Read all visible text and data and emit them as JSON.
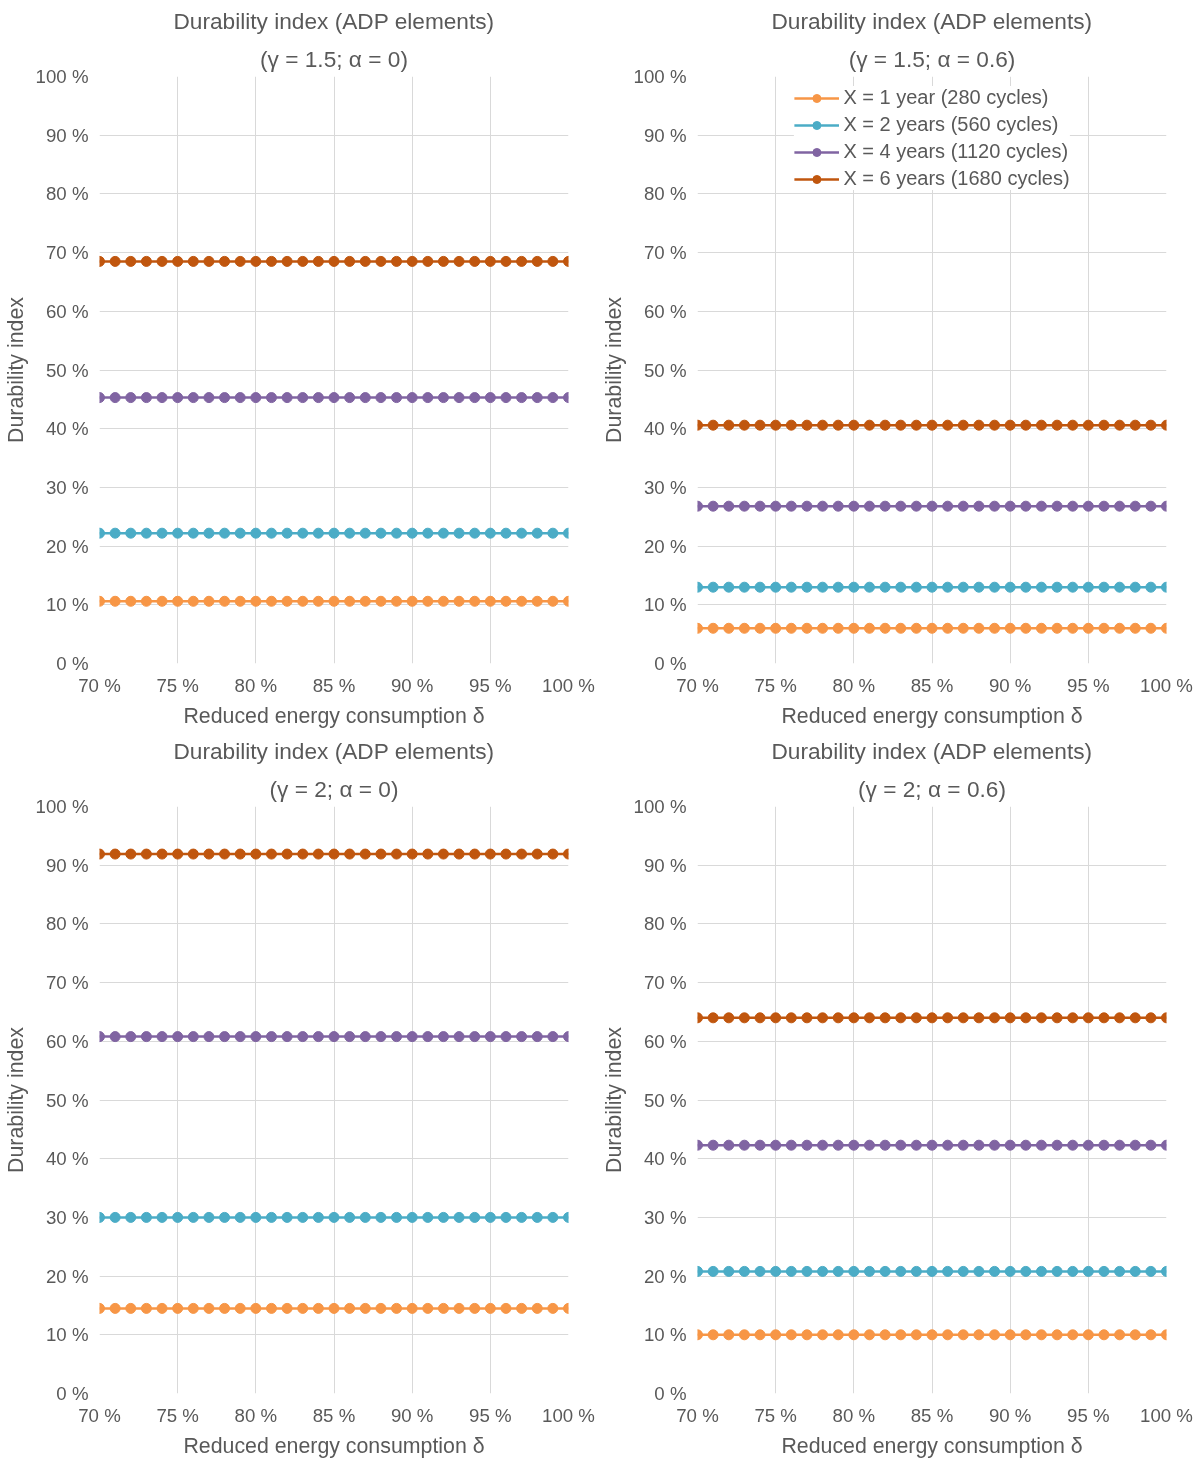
{
  "chart_data": [
    {
      "type": "line",
      "title": "Durability index (ADP elements)",
      "subtitle": "(γ = 1.5; α = 0)",
      "xlabel": "Reduced energy consumption δ",
      "ylabel": "Durability index",
      "x": [
        70,
        71,
        72,
        73,
        74,
        75,
        76,
        77,
        78,
        79,
        80,
        81,
        82,
        83,
        84,
        85,
        86,
        87,
        88,
        89,
        90,
        91,
        92,
        93,
        94,
        95,
        96,
        97,
        98,
        99,
        100
      ],
      "xlim": [
        70,
        100
      ],
      "ylim": [
        0,
        100
      ],
      "xticks": [
        {
          "value": 70,
          "label": "70 %"
        },
        {
          "value": 75,
          "label": "75 %"
        },
        {
          "value": 80,
          "label": "80 %"
        },
        {
          "value": 85,
          "label": "85 %"
        },
        {
          "value": 90,
          "label": "90 %"
        },
        {
          "value": 95,
          "label": "95 %"
        },
        {
          "value": 100,
          "label": "100 %"
        }
      ],
      "yticks": [
        {
          "value": 0,
          "label": "0 %"
        },
        {
          "value": 10,
          "label": "10 %"
        },
        {
          "value": 20,
          "label": "20 %"
        },
        {
          "value": 30,
          "label": "30 %"
        },
        {
          "value": 40,
          "label": "40 %"
        },
        {
          "value": 50,
          "label": "50 %"
        },
        {
          "value": 60,
          "label": "60 %"
        },
        {
          "value": 70,
          "label": "70 %"
        },
        {
          "value": 80,
          "label": "80 %"
        },
        {
          "value": 90,
          "label": "90 %"
        },
        {
          "value": 100,
          "label": "100 %"
        }
      ],
      "grid": true,
      "legend": false,
      "marker": "circle",
      "series": [
        {
          "color": "#f79646",
          "values": [
            10.6,
            10.6,
            10.6,
            10.6,
            10.6,
            10.6,
            10.6,
            10.6,
            10.6,
            10.6,
            10.6,
            10.6,
            10.6,
            10.6,
            10.6,
            10.6,
            10.6,
            10.6,
            10.6,
            10.6,
            10.6,
            10.6,
            10.6,
            10.6,
            10.6,
            10.6,
            10.6,
            10.6,
            10.6,
            10.6,
            10.6
          ]
        },
        {
          "color": "#4bacc6",
          "values": [
            22.2,
            22.2,
            22.2,
            22.2,
            22.2,
            22.2,
            22.2,
            22.2,
            22.2,
            22.2,
            22.2,
            22.2,
            22.2,
            22.2,
            22.2,
            22.2,
            22.2,
            22.2,
            22.2,
            22.2,
            22.2,
            22.2,
            22.2,
            22.2,
            22.2,
            22.2,
            22.2,
            22.2,
            22.2,
            22.2,
            22.2
          ]
        },
        {
          "color": "#8064a2",
          "values": [
            45.3,
            45.3,
            45.3,
            45.3,
            45.3,
            45.3,
            45.3,
            45.3,
            45.3,
            45.3,
            45.3,
            45.3,
            45.3,
            45.3,
            45.3,
            45.3,
            45.3,
            45.3,
            45.3,
            45.3,
            45.3,
            45.3,
            45.3,
            45.3,
            45.3,
            45.3,
            45.3,
            45.3,
            45.3,
            45.3,
            45.3
          ]
        },
        {
          "color": "#c0560e",
          "values": [
            68.5,
            68.5,
            68.5,
            68.5,
            68.5,
            68.5,
            68.5,
            68.5,
            68.5,
            68.5,
            68.5,
            68.5,
            68.5,
            68.5,
            68.5,
            68.5,
            68.5,
            68.5,
            68.5,
            68.5,
            68.5,
            68.5,
            68.5,
            68.5,
            68.5,
            68.5,
            68.5,
            68.5,
            68.5,
            68.5,
            68.5
          ]
        }
      ]
    },
    {
      "type": "line",
      "title": "Durability index (ADP elements)",
      "subtitle": "(γ = 1.5; α = 0.6)",
      "xlabel": "Reduced energy consumption δ",
      "ylabel": "Durability index",
      "x": [
        70,
        71,
        72,
        73,
        74,
        75,
        76,
        77,
        78,
        79,
        80,
        81,
        82,
        83,
        84,
        85,
        86,
        87,
        88,
        89,
        90,
        91,
        92,
        93,
        94,
        95,
        96,
        97,
        98,
        99,
        100
      ],
      "xlim": [
        70,
        100
      ],
      "ylim": [
        0,
        100
      ],
      "xticks": [
        {
          "value": 70,
          "label": "70 %"
        },
        {
          "value": 75,
          "label": "75 %"
        },
        {
          "value": 80,
          "label": "80 %"
        },
        {
          "value": 85,
          "label": "85 %"
        },
        {
          "value": 90,
          "label": "90 %"
        },
        {
          "value": 95,
          "label": "95 %"
        },
        {
          "value": 100,
          "label": "100 %"
        }
      ],
      "yticks": [
        {
          "value": 0,
          "label": "0 %"
        },
        {
          "value": 10,
          "label": "10 %"
        },
        {
          "value": 20,
          "label": "20 %"
        },
        {
          "value": 30,
          "label": "30 %"
        },
        {
          "value": 40,
          "label": "40 %"
        },
        {
          "value": 50,
          "label": "50 %"
        },
        {
          "value": 60,
          "label": "60 %"
        },
        {
          "value": 70,
          "label": "70 %"
        },
        {
          "value": 80,
          "label": "80 %"
        },
        {
          "value": 90,
          "label": "90 %"
        },
        {
          "value": 100,
          "label": "100 %"
        }
      ],
      "grid": true,
      "legend": "top",
      "marker": "circle",
      "series": [
        {
          "name": "X = 1 year (280 cycles)",
          "color": "#f79646",
          "values": [
            6.0,
            6.0,
            6.0,
            6.0,
            6.0,
            6.0,
            6.0,
            6.0,
            6.0,
            6.0,
            6.0,
            6.0,
            6.0,
            6.0,
            6.0,
            6.0,
            6.0,
            6.0,
            6.0,
            6.0,
            6.0,
            6.0,
            6.0,
            6.0,
            6.0,
            6.0,
            6.0,
            6.0,
            6.0,
            6.0,
            6.0
          ]
        },
        {
          "name": "X = 2 years (560 cycles)",
          "color": "#4bacc6",
          "values": [
            13.0,
            13.0,
            13.0,
            13.0,
            13.0,
            13.0,
            13.0,
            13.0,
            13.0,
            13.0,
            13.0,
            13.0,
            13.0,
            13.0,
            13.0,
            13.0,
            13.0,
            13.0,
            13.0,
            13.0,
            13.0,
            13.0,
            13.0,
            13.0,
            13.0,
            13.0,
            13.0,
            13.0,
            13.0,
            13.0,
            13.0
          ]
        },
        {
          "name": "X = 4 years (1120 cycles)",
          "color": "#8064a2",
          "values": [
            26.8,
            26.8,
            26.8,
            26.8,
            26.8,
            26.8,
            26.8,
            26.8,
            26.8,
            26.8,
            26.8,
            26.8,
            26.8,
            26.8,
            26.8,
            26.8,
            26.8,
            26.8,
            26.8,
            26.8,
            26.8,
            26.8,
            26.8,
            26.8,
            26.8,
            26.8,
            26.8,
            26.8,
            26.8,
            26.8,
            26.8
          ]
        },
        {
          "name": "X = 6 years (1680 cycles)",
          "color": "#c0560e",
          "values": [
            40.6,
            40.6,
            40.6,
            40.6,
            40.6,
            40.6,
            40.6,
            40.6,
            40.6,
            40.6,
            40.6,
            40.6,
            40.6,
            40.6,
            40.6,
            40.6,
            40.6,
            40.6,
            40.6,
            40.6,
            40.6,
            40.6,
            40.6,
            40.6,
            40.6,
            40.6,
            40.6,
            40.6,
            40.6,
            40.6,
            40.6
          ]
        }
      ]
    },
    {
      "type": "line",
      "title": "Durability index (ADP elements)",
      "subtitle": "(γ = 2; α = 0)",
      "xlabel": "Reduced energy consumption δ",
      "ylabel": "Durability index",
      "x": [
        70,
        71,
        72,
        73,
        74,
        75,
        76,
        77,
        78,
        79,
        80,
        81,
        82,
        83,
        84,
        85,
        86,
        87,
        88,
        89,
        90,
        91,
        92,
        93,
        94,
        95,
        96,
        97,
        98,
        99,
        100
      ],
      "xlim": [
        70,
        100
      ],
      "ylim": [
        0,
        100
      ],
      "xticks": [
        {
          "value": 70,
          "label": "70 %"
        },
        {
          "value": 75,
          "label": "75 %"
        },
        {
          "value": 80,
          "label": "80 %"
        },
        {
          "value": 85,
          "label": "85 %"
        },
        {
          "value": 90,
          "label": "90 %"
        },
        {
          "value": 95,
          "label": "95 %"
        },
        {
          "value": 100,
          "label": "100 %"
        }
      ],
      "yticks": [
        {
          "value": 0,
          "label": "0 %"
        },
        {
          "value": 10,
          "label": "10 %"
        },
        {
          "value": 20,
          "label": "20 %"
        },
        {
          "value": 30,
          "label": "30 %"
        },
        {
          "value": 40,
          "label": "40 %"
        },
        {
          "value": 50,
          "label": "50 %"
        },
        {
          "value": 60,
          "label": "60 %"
        },
        {
          "value": 70,
          "label": "70 %"
        },
        {
          "value": 80,
          "label": "80 %"
        },
        {
          "value": 90,
          "label": "90 %"
        },
        {
          "value": 100,
          "label": "100 %"
        }
      ],
      "grid": true,
      "legend": false,
      "marker": "circle",
      "series": [
        {
          "color": "#f79646",
          "values": [
            14.5,
            14.5,
            14.5,
            14.5,
            14.5,
            14.5,
            14.5,
            14.5,
            14.5,
            14.5,
            14.5,
            14.5,
            14.5,
            14.5,
            14.5,
            14.5,
            14.5,
            14.5,
            14.5,
            14.5,
            14.5,
            14.5,
            14.5,
            14.5,
            14.5,
            14.5,
            14.5,
            14.5,
            14.5,
            14.5,
            14.5
          ]
        },
        {
          "color": "#4bacc6",
          "values": [
            30.0,
            30.0,
            30.0,
            30.0,
            30.0,
            30.0,
            30.0,
            30.0,
            30.0,
            30.0,
            30.0,
            30.0,
            30.0,
            30.0,
            30.0,
            30.0,
            30.0,
            30.0,
            30.0,
            30.0,
            30.0,
            30.0,
            30.0,
            30.0,
            30.0,
            30.0,
            30.0,
            30.0,
            30.0,
            30.0,
            30.0
          ]
        },
        {
          "color": "#8064a2",
          "values": [
            60.8,
            60.8,
            60.8,
            60.8,
            60.8,
            60.8,
            60.8,
            60.8,
            60.8,
            60.8,
            60.8,
            60.8,
            60.8,
            60.8,
            60.8,
            60.8,
            60.8,
            60.8,
            60.8,
            60.8,
            60.8,
            60.8,
            60.8,
            60.8,
            60.8,
            60.8,
            60.8,
            60.8,
            60.8,
            60.8,
            60.8
          ]
        },
        {
          "color": "#c0560e",
          "values": [
            91.9,
            91.9,
            91.9,
            91.9,
            91.9,
            91.9,
            91.9,
            91.9,
            91.9,
            91.9,
            91.9,
            91.9,
            91.9,
            91.9,
            91.9,
            91.9,
            91.9,
            91.9,
            91.9,
            91.9,
            91.9,
            91.9,
            91.9,
            91.9,
            91.9,
            91.9,
            91.9,
            91.9,
            91.9,
            91.9,
            91.9
          ]
        }
      ]
    },
    {
      "type": "line",
      "title": "Durability index (ADP elements)",
      "subtitle": "(γ = 2; α = 0.6)",
      "xlabel": "Reduced energy consumption δ",
      "ylabel": "Durability index",
      "x": [
        70,
        71,
        72,
        73,
        74,
        75,
        76,
        77,
        78,
        79,
        80,
        81,
        82,
        83,
        84,
        85,
        86,
        87,
        88,
        89,
        90,
        91,
        92,
        93,
        94,
        95,
        96,
        97,
        98,
        99,
        100
      ],
      "xlim": [
        70,
        100
      ],
      "ylim": [
        0,
        100
      ],
      "xticks": [
        {
          "value": 70,
          "label": "70 %"
        },
        {
          "value": 75,
          "label": "75 %"
        },
        {
          "value": 80,
          "label": "80 %"
        },
        {
          "value": 85,
          "label": "85 %"
        },
        {
          "value": 90,
          "label": "90 %"
        },
        {
          "value": 95,
          "label": "95 %"
        },
        {
          "value": 100,
          "label": "100 %"
        }
      ],
      "yticks": [
        {
          "value": 0,
          "label": "0 %"
        },
        {
          "value": 10,
          "label": "10 %"
        },
        {
          "value": 20,
          "label": "20 %"
        },
        {
          "value": 30,
          "label": "30 %"
        },
        {
          "value": 40,
          "label": "40 %"
        },
        {
          "value": 50,
          "label": "50 %"
        },
        {
          "value": 60,
          "label": "60 %"
        },
        {
          "value": 70,
          "label": "70 %"
        },
        {
          "value": 80,
          "label": "80 %"
        },
        {
          "value": 90,
          "label": "90 %"
        },
        {
          "value": 100,
          "label": "100 %"
        }
      ],
      "grid": true,
      "legend": false,
      "marker": "circle",
      "series": [
        {
          "color": "#f79646",
          "values": [
            10.0,
            10.0,
            10.0,
            10.0,
            10.0,
            10.0,
            10.0,
            10.0,
            10.0,
            10.0,
            10.0,
            10.0,
            10.0,
            10.0,
            10.0,
            10.0,
            10.0,
            10.0,
            10.0,
            10.0,
            10.0,
            10.0,
            10.0,
            10.0,
            10.0,
            10.0,
            10.0,
            10.0,
            10.0,
            10.0,
            10.0
          ]
        },
        {
          "color": "#4bacc6",
          "values": [
            20.8,
            20.8,
            20.8,
            20.8,
            20.8,
            20.8,
            20.8,
            20.8,
            20.8,
            20.8,
            20.8,
            20.8,
            20.8,
            20.8,
            20.8,
            20.8,
            20.8,
            20.8,
            20.8,
            20.8,
            20.8,
            20.8,
            20.8,
            20.8,
            20.8,
            20.8,
            20.8,
            20.8,
            20.8,
            20.8,
            20.8
          ]
        },
        {
          "color": "#8064a2",
          "values": [
            42.3,
            42.3,
            42.3,
            42.3,
            42.3,
            42.3,
            42.3,
            42.3,
            42.3,
            42.3,
            42.3,
            42.3,
            42.3,
            42.3,
            42.3,
            42.3,
            42.3,
            42.3,
            42.3,
            42.3,
            42.3,
            42.3,
            42.3,
            42.3,
            42.3,
            42.3,
            42.3,
            42.3,
            42.3,
            42.3,
            42.3
          ]
        },
        {
          "color": "#c0560e",
          "values": [
            64.0,
            64.0,
            64.0,
            64.0,
            64.0,
            64.0,
            64.0,
            64.0,
            64.0,
            64.0,
            64.0,
            64.0,
            64.0,
            64.0,
            64.0,
            64.0,
            64.0,
            64.0,
            64.0,
            64.0,
            64.0,
            64.0,
            64.0,
            64.0,
            64.0,
            64.0,
            64.0,
            64.0,
            64.0,
            64.0,
            64.0
          ]
        }
      ]
    }
  ]
}
